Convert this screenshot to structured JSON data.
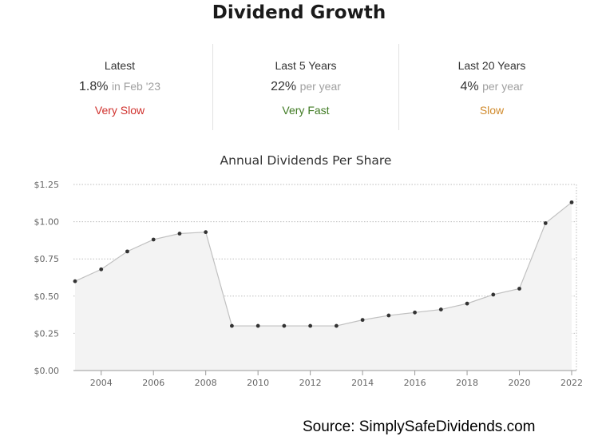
{
  "page": {
    "title": "Dividend Growth"
  },
  "stats": [
    {
      "label": "Latest",
      "value": "1.8%",
      "sub": "in Feb '23",
      "rating": "Very Slow",
      "rating_color": "#d0312d"
    },
    {
      "label": "Last 5 Years",
      "value": "22%",
      "sub": "per year",
      "rating": "Very Fast",
      "rating_color": "#3f7a22"
    },
    {
      "label": "Last 20 Years",
      "value": "4%",
      "sub": "per year",
      "rating": "Slow",
      "rating_color": "#d08a2c"
    }
  ],
  "chart_data": {
    "type": "area",
    "title": "Annual Dividends Per Share",
    "xlabel": "",
    "ylabel": "",
    "x": [
      2003,
      2004,
      2005,
      2006,
      2007,
      2008,
      2009,
      2010,
      2011,
      2012,
      2013,
      2014,
      2015,
      2016,
      2017,
      2018,
      2019,
      2020,
      2021,
      2022
    ],
    "series": [
      {
        "values": [
          0.6,
          0.68,
          0.8,
          0.88,
          0.92,
          0.93,
          0.3,
          0.3,
          0.3,
          0.3,
          0.3,
          0.34,
          0.37,
          0.39,
          0.41,
          0.45,
          0.51,
          0.55,
          0.99,
          1.13
        ]
      }
    ],
    "x_ticks": [
      2004,
      2006,
      2008,
      2010,
      2012,
      2014,
      2016,
      2018,
      2020,
      2022
    ],
    "x_tick_labels": [
      "2004",
      "2006",
      "2008",
      "2010",
      "2012",
      "2014",
      "2016",
      "2018",
      "2020",
      "2022"
    ],
    "y_ticks": [
      0,
      0.25,
      0.5,
      0.75,
      1.0,
      1.25
    ],
    "y_tick_labels": [
      "$0.00",
      "$0.25",
      "$0.50",
      "$0.75",
      "$1.00",
      "$1.25"
    ],
    "ylim": [
      0,
      1.25
    ],
    "xlim": [
      2003,
      2022
    ],
    "grid": true,
    "line_color": "#c0c0c0",
    "fill_color": "#f3f3f3",
    "point_color": "#333333"
  },
  "footer": {
    "source": "Source: SimplySafeDividends.com"
  }
}
